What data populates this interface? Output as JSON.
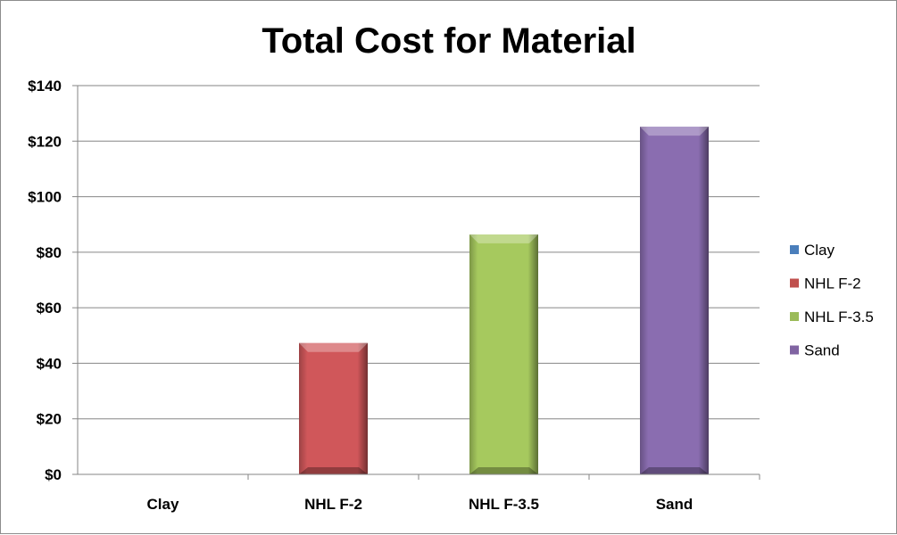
{
  "chart_data": {
    "type": "bar",
    "title": "Total Cost for Material",
    "xlabel": "",
    "ylabel": "",
    "categories": [
      "Clay",
      "NHL F-2",
      "NHL F-3.5",
      "Sand"
    ],
    "values": [
      0,
      47.3,
      86.4,
      125.2
    ],
    "ylim": [
      0,
      140
    ],
    "ytick_step": 20,
    "yticks": [
      "$0",
      "$20",
      "$40",
      "$60",
      "$80",
      "$100",
      "$120",
      "$140"
    ],
    "grid": true,
    "legend_position": "right",
    "legend": [
      "Clay",
      "NHL F-2",
      "NHL F-3.5",
      "Sand"
    ],
    "colors": [
      "#4a7ebb",
      "#c0504d",
      "#9bbb59",
      "#8064a2"
    ],
    "bar_fill_colors": [
      "#4f81bd",
      "#d0575a",
      "#a6c95e",
      "#8a6db0"
    ]
  }
}
